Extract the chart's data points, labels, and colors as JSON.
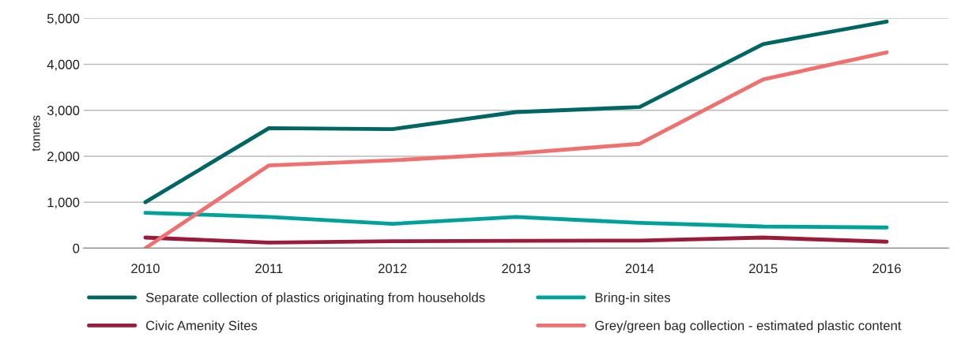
{
  "chart_data": {
    "type": "line",
    "ylabel": "tonnes",
    "categories": [
      "2010",
      "2011",
      "2012",
      "2013",
      "2014",
      "2015",
      "2016"
    ],
    "series": [
      {
        "name": "Separate collection of plastics originating from households",
        "color": "#006663",
        "values": [
          1000,
          2610,
          2590,
          2960,
          3070,
          4440,
          4930
        ]
      },
      {
        "name": "Bring-in sites",
        "color": "#00a19a",
        "values": [
          770,
          680,
          530,
          680,
          550,
          470,
          450
        ]
      },
      {
        "name": "Civic Amenity Sites",
        "color": "#9b1b3a",
        "values": [
          230,
          120,
          150,
          160,
          165,
          230,
          140
        ]
      },
      {
        "name": "Grey/green bag collection - estimated plastic content",
        "color": "#f07070",
        "values": [
          0,
          1800,
          1910,
          2060,
          2270,
          3670,
          4260
        ]
      }
    ],
    "ylim": [
      0,
      5000
    ],
    "yticks": [
      {
        "value": 0,
        "label": "0"
      },
      {
        "value": 1000,
        "label": "1,000"
      },
      {
        "value": 2000,
        "label": "2,000"
      },
      {
        "value": 3000,
        "label": "3,000"
      },
      {
        "value": 4000,
        "label": "4,000"
      },
      {
        "value": 5000,
        "label": "5,000"
      }
    ],
    "grid": "y",
    "legend": "bottom",
    "marker": "none",
    "line_style": "solid"
  }
}
